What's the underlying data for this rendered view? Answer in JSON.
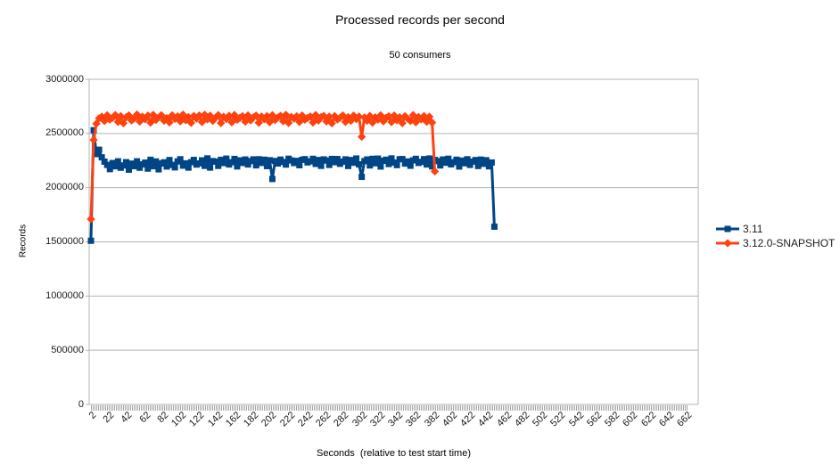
{
  "colors": {
    "series_blue": "#004586",
    "series_orange": "#ff420e",
    "gridline": "#b3b3b3",
    "axis": "#b3b3b3",
    "tick_text": "#1a1a1a"
  },
  "chart_data": {
    "type": "line",
    "title": "Processed records per second",
    "subtitle": "50 consumers",
    "xlabel": "Seconds  (relative to test start time)",
    "ylabel": "Records",
    "xlim": [
      2,
      662
    ],
    "ylim": [
      0,
      3000000
    ],
    "grid": true,
    "legend_position": "right",
    "x_ticks": [
      2,
      22,
      42,
      62,
      82,
      102,
      122,
      142,
      162,
      182,
      202,
      222,
      242,
      262,
      282,
      302,
      322,
      342,
      362,
      382,
      402,
      422,
      442,
      462,
      482,
      502,
      522,
      542,
      562,
      582,
      602,
      622,
      642,
      662
    ],
    "y_ticks": [
      0,
      500000,
      1000000,
      1500000,
      2000000,
      2500000,
      3000000
    ],
    "series": [
      {
        "name": "3.11",
        "color": "#004586",
        "marker": "square",
        "points": [
          [
            2,
            1510000
          ],
          [
            5,
            2530000
          ],
          [
            8,
            2310000
          ],
          [
            11,
            2350000
          ],
          [
            14,
            2280000
          ],
          [
            17,
            2240000
          ],
          [
            20,
            2210000
          ],
          [
            23,
            2171000
          ],
          [
            26,
            2227000
          ],
          [
            29,
            2197000
          ],
          [
            32,
            2243000
          ],
          [
            35,
            2184000
          ],
          [
            38,
            2205000
          ],
          [
            41,
            2235000
          ],
          [
            44,
            2166000
          ],
          [
            47,
            2222000
          ],
          [
            50,
            2198000
          ],
          [
            53,
            2243000
          ],
          [
            56,
            2184000
          ],
          [
            59,
            2215000
          ],
          [
            62,
            2231000
          ],
          [
            65,
            2176000
          ],
          [
            68,
            2257000
          ],
          [
            71,
            2198000
          ],
          [
            74,
            2242000
          ],
          [
            77,
            2169000
          ],
          [
            80,
            2223000
          ],
          [
            83,
            2234000
          ],
          [
            86,
            2195000
          ],
          [
            89,
            2255000
          ],
          [
            92,
            2210000
          ],
          [
            95,
            2187000
          ],
          [
            98,
            2242000
          ],
          [
            101,
            2262000
          ],
          [
            104,
            2203000
          ],
          [
            107,
            2224000
          ],
          [
            110,
            2185000
          ],
          [
            113,
            2235000
          ],
          [
            116,
            2256000
          ],
          [
            119,
            2213000
          ],
          [
            122,
            2224000
          ],
          [
            125,
            2252000
          ],
          [
            128,
            2201000
          ],
          [
            131,
            2270000
          ],
          [
            134,
            2185000
          ],
          [
            137,
            2245000
          ],
          [
            140,
            2240000
          ],
          [
            143,
            2201000
          ],
          [
            146,
            2257000
          ],
          [
            149,
            2227000
          ],
          [
            152,
            2268000
          ],
          [
            155,
            2214000
          ],
          [
            158,
            2235000
          ],
          [
            161,
            2265000
          ],
          [
            164,
            2196000
          ],
          [
            167,
            2252000
          ],
          [
            170,
            2228000
          ],
          [
            173,
            2260000
          ],
          [
            176,
            2214000
          ],
          [
            179,
            2245000
          ],
          [
            182,
            2261000
          ],
          [
            185,
            2206000
          ],
          [
            188,
            2262000
          ],
          [
            191,
            2228000
          ],
          [
            194,
            2258000
          ],
          [
            197,
            2199000
          ],
          [
            200,
            2253000
          ],
          [
            203,
            2080000
          ],
          [
            206,
            2246000
          ],
          [
            209,
            2223000
          ],
          [
            212,
            2259000
          ],
          [
            215,
            2237000
          ],
          [
            218,
            2213000
          ],
          [
            221,
            2267000
          ],
          [
            224,
            2251000
          ],
          [
            227,
            2227000
          ],
          [
            230,
            2247000
          ],
          [
            233,
            2207000
          ],
          [
            236,
            2257000
          ],
          [
            239,
            2263000
          ],
          [
            242,
            2233000
          ],
          [
            245,
            2243000
          ],
          [
            248,
            2266000
          ],
          [
            251,
            2219000
          ],
          [
            254,
            2255000
          ],
          [
            257,
            2201000
          ],
          [
            260,
            2261000
          ],
          [
            263,
            2250000
          ],
          [
            266,
            2210000
          ],
          [
            269,
            2265000
          ],
          [
            272,
            2235000
          ],
          [
            275,
            2264000
          ],
          [
            278,
            2220000
          ],
          [
            281,
            2240000
          ],
          [
            284,
            2261000
          ],
          [
            287,
            2200000
          ],
          [
            290,
            2255000
          ],
          [
            293,
            2230000
          ],
          [
            296,
            2269000
          ],
          [
            299,
            2215000
          ],
          [
            302,
            2100000
          ],
          [
            305,
            2245000
          ],
          [
            308,
            2260000
          ],
          [
            311,
            2205000
          ],
          [
            314,
            2266000
          ],
          [
            317,
            2225000
          ],
          [
            320,
            2268000
          ],
          [
            323,
            2195000
          ],
          [
            326,
            2248000
          ],
          [
            329,
            2258000
          ],
          [
            332,
            2218000
          ],
          [
            335,
            2270000
          ],
          [
            338,
            2232000
          ],
          [
            341,
            2208000
          ],
          [
            344,
            2262000
          ],
          [
            347,
            2264000
          ],
          [
            350,
            2222000
          ],
          [
            353,
            2242000
          ],
          [
            356,
            2202000
          ],
          [
            359,
            2252000
          ],
          [
            362,
            2266000
          ],
          [
            365,
            2228000
          ],
          [
            368,
            2238000
          ],
          [
            371,
            2263000
          ],
          [
            374,
            2214000
          ],
          [
            377,
            2269000
          ],
          [
            380,
            2196000
          ],
          [
            383,
            2256000
          ],
          [
            386,
            2245000
          ],
          [
            389,
            2205000
          ],
          [
            392,
            2260000
          ],
          [
            395,
            2230000
          ],
          [
            398,
            2267000
          ],
          [
            401,
            2215000
          ],
          [
            404,
            2235000
          ],
          [
            407,
            2258000
          ],
          [
            410,
            2195000
          ],
          [
            413,
            2250000
          ],
          [
            416,
            2225000
          ],
          [
            419,
            2262000
          ],
          [
            422,
            2210000
          ],
          [
            425,
            2240000
          ],
          [
            428,
            2255000
          ],
          [
            431,
            2200000
          ],
          [
            434,
            2259000
          ],
          [
            437,
            2220000
          ],
          [
            440,
            2253000
          ],
          [
            443,
            2197000
          ],
          [
            446,
            2232000
          ],
          [
            449,
            1640000
          ]
        ]
      },
      {
        "name": "3.12.0-SNAPSHOT",
        "color": "#ff420e",
        "marker": "diamond",
        "points": [
          [
            2,
            1710000
          ],
          [
            5,
            2440000
          ],
          [
            8,
            2590000
          ],
          [
            11,
            2640000
          ],
          [
            14,
            2655000
          ],
          [
            17,
            2615000
          ],
          [
            20,
            2668000
          ],
          [
            23,
            2628000
          ],
          [
            26,
            2645000
          ],
          [
            29,
            2670000
          ],
          [
            32,
            2607000
          ],
          [
            35,
            2660000
          ],
          [
            38,
            2595000
          ],
          [
            41,
            2650000
          ],
          [
            44,
            2667000
          ],
          [
            47,
            2620000
          ],
          [
            50,
            2640000
          ],
          [
            53,
            2675000
          ],
          [
            56,
            2610000
          ],
          [
            59,
            2655000
          ],
          [
            62,
            2632000
          ],
          [
            65,
            2665000
          ],
          [
            68,
            2600000
          ],
          [
            71,
            2672000
          ],
          [
            74,
            2625000
          ],
          [
            77,
            2648000
          ],
          [
            80,
            2669000
          ],
          [
            83,
            2618000
          ],
          [
            86,
            2642000
          ],
          [
            89,
            2602000
          ],
          [
            92,
            2668000
          ],
          [
            95,
            2635000
          ],
          [
            98,
            2658000
          ],
          [
            101,
            2612000
          ],
          [
            104,
            2674000
          ],
          [
            107,
            2622000
          ],
          [
            110,
            2652000
          ],
          [
            113,
            2598000
          ],
          [
            116,
            2662000
          ],
          [
            119,
            2638000
          ],
          [
            122,
            2666000
          ],
          [
            125,
            2605000
          ],
          [
            128,
            2673000
          ],
          [
            131,
            2630000
          ],
          [
            134,
            2664000
          ],
          [
            137,
            2616000
          ],
          [
            140,
            2646000
          ],
          [
            143,
            2670000
          ],
          [
            146,
            2596000
          ],
          [
            149,
            2654000
          ],
          [
            152,
            2634000
          ],
          [
            155,
            2663000
          ],
          [
            158,
            2603000
          ],
          [
            161,
            2671000
          ],
          [
            164,
            2626000
          ],
          [
            167,
            2644000
          ],
          [
            170,
            2660000
          ],
          [
            173,
            2609000
          ],
          [
            176,
            2667000
          ],
          [
            179,
            2621000
          ],
          [
            182,
            2649000
          ],
          [
            185,
            2665000
          ],
          [
            188,
            2599000
          ],
          [
            191,
            2657000
          ],
          [
            194,
            2631000
          ],
          [
            197,
            2661000
          ],
          [
            200,
            2604000
          ],
          [
            203,
            2669000
          ],
          [
            206,
            2624000
          ],
          [
            209,
            2647000
          ],
          [
            212,
            2663000
          ],
          [
            215,
            2613000
          ],
          [
            218,
            2672000
          ],
          [
            221,
            2597000
          ],
          [
            224,
            2653000
          ],
          [
            227,
            2637000
          ],
          [
            230,
            2659000
          ],
          [
            233,
            2606000
          ],
          [
            236,
            2666000
          ],
          [
            239,
            2627000
          ],
          [
            242,
            2643000
          ],
          [
            245,
            2657000
          ],
          [
            248,
            2601000
          ],
          [
            251,
            2670000
          ],
          [
            254,
            2619000
          ],
          [
            257,
            2651000
          ],
          [
            260,
            2662000
          ],
          [
            263,
            2611000
          ],
          [
            266,
            2655000
          ],
          [
            269,
            2594000
          ],
          [
            272,
            2661000
          ],
          [
            275,
            2629000
          ],
          [
            278,
            2645000
          ],
          [
            281,
            2667000
          ],
          [
            284,
            2607000
          ],
          [
            287,
            2651000
          ],
          [
            290,
            2617000
          ],
          [
            293,
            2665000
          ],
          [
            296,
            2633000
          ],
          [
            299,
            2656000
          ],
          [
            302,
            2470000
          ],
          [
            305,
            2648000
          ],
          [
            308,
            2618000
          ],
          [
            311,
            2662000
          ],
          [
            314,
            2600000
          ],
          [
            317,
            2649000
          ],
          [
            320,
            2628000
          ],
          [
            323,
            2668000
          ],
          [
            326,
            2612000
          ],
          [
            329,
            2644000
          ],
          [
            332,
            2659000
          ],
          [
            335,
            2605000
          ],
          [
            338,
            2666000
          ],
          [
            341,
            2622000
          ],
          [
            344,
            2650000
          ],
          [
            347,
            2595000
          ],
          [
            350,
            2660000
          ],
          [
            353,
            2636000
          ],
          [
            356,
            2615000
          ],
          [
            359,
            2670000
          ],
          [
            362,
            2603000
          ],
          [
            365,
            2652000
          ],
          [
            368,
            2630000
          ],
          [
            371,
            2661000
          ],
          [
            374,
            2608000
          ],
          [
            377,
            2655000
          ],
          [
            380,
            2600000
          ],
          [
            383,
            2150000
          ]
        ]
      }
    ]
  }
}
